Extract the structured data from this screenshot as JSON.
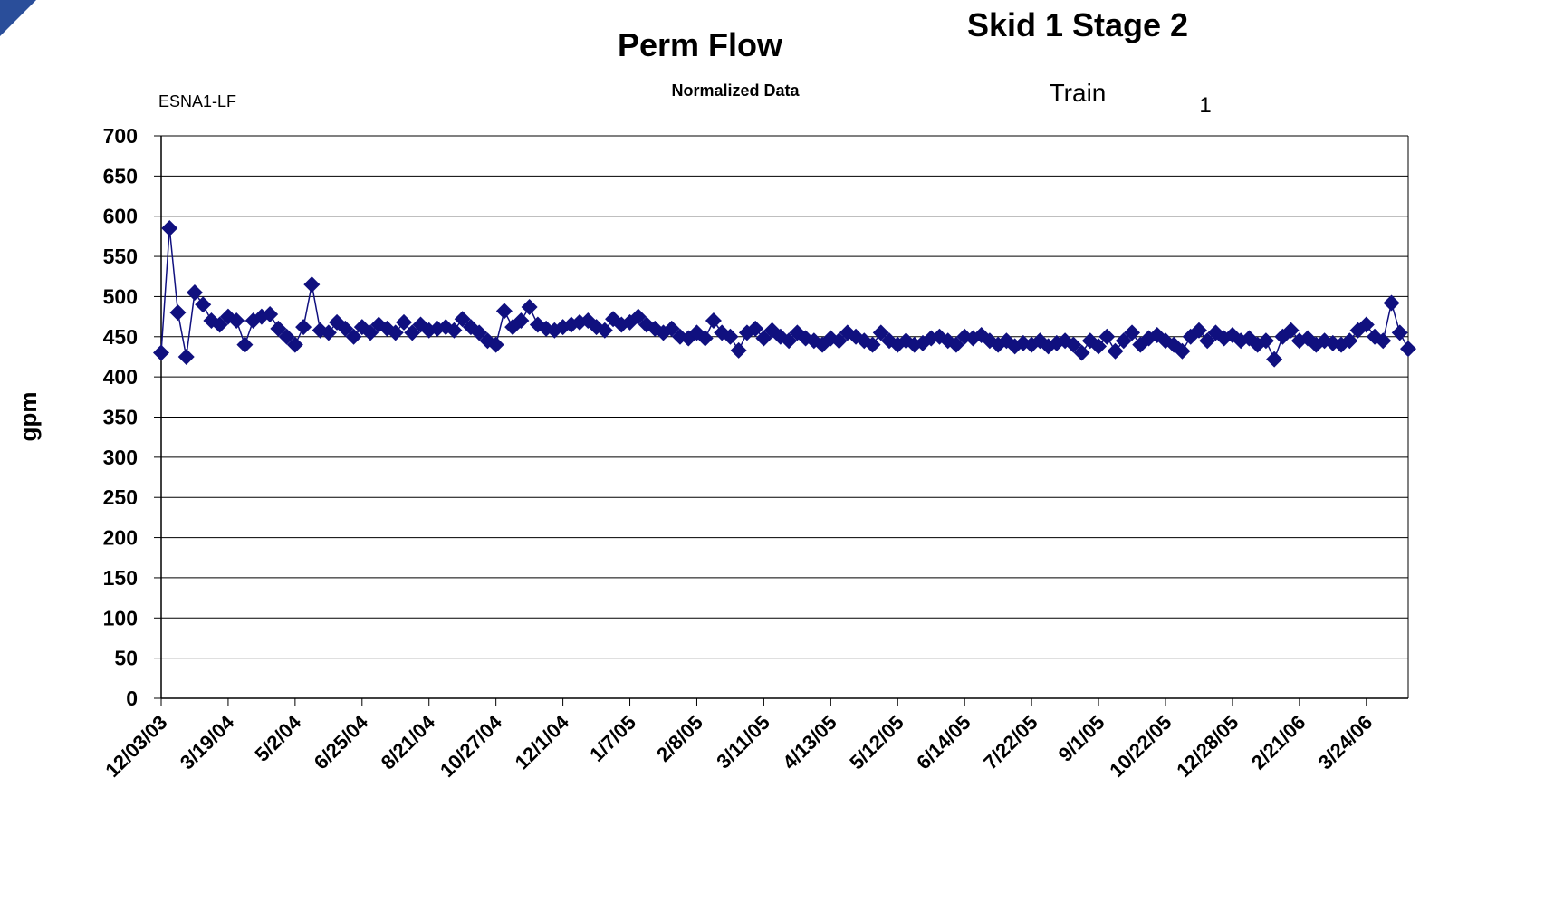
{
  "chart_data": {
    "type": "line",
    "title": "Perm Flow",
    "subtitle": "Normalized Data",
    "header": "Skid 1 Stage 2",
    "source_label": "ESNA1-LF",
    "train_label": "Train",
    "train_number": "1",
    "y_label": "gpm",
    "categories": [
      "12/03/03",
      null,
      null,
      null,
      null,
      null,
      null,
      null,
      "3/19/04",
      null,
      null,
      null,
      null,
      null,
      null,
      null,
      "5/2/04",
      null,
      null,
      null,
      null,
      null,
      null,
      null,
      "6/25/04",
      null,
      null,
      null,
      null,
      null,
      null,
      null,
      "8/21/04",
      null,
      null,
      null,
      null,
      null,
      null,
      null,
      "10/27/04",
      null,
      null,
      null,
      null,
      null,
      null,
      null,
      "12/1/04",
      null,
      null,
      null,
      null,
      null,
      null,
      null,
      "1/7/05",
      null,
      null,
      null,
      null,
      null,
      null,
      null,
      "2/8/05",
      null,
      null,
      null,
      null,
      null,
      null,
      null,
      "3/11/05",
      null,
      null,
      null,
      null,
      null,
      null,
      null,
      "4/13/05",
      null,
      null,
      null,
      null,
      null,
      null,
      null,
      "5/12/05",
      null,
      null,
      null,
      null,
      null,
      null,
      null,
      "6/14/05",
      null,
      null,
      null,
      null,
      null,
      null,
      null,
      "7/22/05",
      null,
      null,
      null,
      null,
      null,
      null,
      null,
      "9/1/05",
      null,
      null,
      null,
      null,
      null,
      null,
      null,
      "10/22/05",
      null,
      null,
      null,
      null,
      null,
      null,
      null,
      "12/28/05",
      null,
      null,
      null,
      null,
      null,
      null,
      null,
      "2/21/06",
      null,
      null,
      null,
      null,
      null,
      null,
      null,
      "3/24/06",
      null,
      null,
      null,
      null,
      null
    ],
    "series": [
      {
        "name": "Perm Flow",
        "color": "#10107f",
        "values": [
          430,
          585,
          480,
          425,
          505,
          490,
          470,
          465,
          475,
          470,
          440,
          470,
          475,
          478,
          460,
          450,
          440,
          462,
          515,
          458,
          455,
          468,
          460,
          450,
          462,
          455,
          465,
          460,
          455,
          468,
          455,
          465,
          458,
          460,
          462,
          458,
          472,
          462,
          455,
          445,
          440,
          482,
          462,
          470,
          487,
          465,
          460,
          458,
          462,
          465,
          468,
          470,
          462,
          458,
          472,
          465,
          468,
          475,
          465,
          460,
          455,
          460,
          450,
          448,
          455,
          448,
          470,
          455,
          450,
          433,
          455,
          460,
          448,
          458,
          450,
          445,
          455,
          448,
          445,
          440,
          448,
          445,
          455,
          450,
          445,
          440,
          455,
          445,
          440,
          445,
          440,
          442,
          448,
          450,
          445,
          440,
          450,
          448,
          452,
          445,
          440,
          445,
          438,
          442,
          440,
          445,
          438,
          442,
          445,
          440,
          430,
          445,
          438,
          450,
          432,
          445,
          455,
          440,
          448,
          452,
          445,
          440,
          432,
          450,
          458,
          445,
          455,
          448,
          452,
          445,
          448,
          440,
          445,
          422,
          450,
          458,
          445,
          448,
          440,
          445,
          442,
          440,
          445,
          458,
          465,
          450,
          445,
          492,
          455,
          435
        ]
      }
    ],
    "ylim": [
      0,
      700
    ],
    "yticks": [
      0,
      50,
      100,
      150,
      200,
      250,
      300,
      350,
      400,
      450,
      500,
      550,
      600,
      650,
      700
    ],
    "grid": true
  }
}
